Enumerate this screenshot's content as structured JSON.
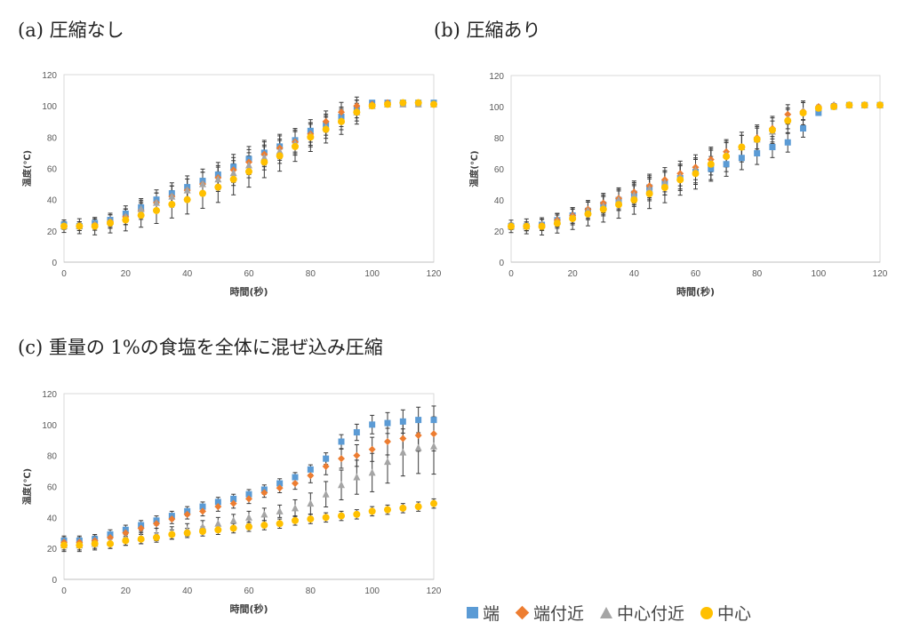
{
  "panels": [
    {
      "label": "(a) 圧縮なし"
    },
    {
      "label": "(b) 圧縮あり"
    },
    {
      "label": "(c) 重量の 1%の食塩を全体に混ぜ込み圧縮"
    }
  ],
  "legend": [
    {
      "name": "端",
      "color": "#5b9bd5",
      "icon": "square"
    },
    {
      "name": "端付近",
      "color": "#ed7d31",
      "icon": "diamond"
    },
    {
      "name": "中心付近",
      "color": "#a5a5a5",
      "icon": "triangle"
    },
    {
      "name": "中心",
      "color": "#ffc000",
      "icon": "circle"
    }
  ],
  "chart_data": [
    {
      "type": "scatter",
      "title": "(a) 圧縮なし",
      "xlabel": "時間(秒)",
      "ylabel": "温度(℃)",
      "xlim": [
        0,
        120
      ],
      "ylim": [
        0,
        120
      ],
      "xticks": [
        0,
        20,
        40,
        60,
        80,
        100,
        120
      ],
      "yticks": [
        0,
        20,
        40,
        60,
        80,
        100,
        120
      ],
      "error_bars": true,
      "x": [
        0,
        5,
        10,
        15,
        20,
        25,
        30,
        35,
        40,
        45,
        50,
        55,
        60,
        65,
        70,
        75,
        80,
        85,
        90,
        95,
        100,
        105,
        110,
        115,
        120
      ],
      "series": [
        {
          "name": "端",
          "values": [
            24,
            23,
            25,
            27,
            31,
            35,
            40,
            44,
            48,
            52,
            56,
            61,
            66,
            70,
            74,
            78,
            84,
            88,
            93,
            98,
            102,
            102,
            102,
            102,
            102
          ]
        },
        {
          "name": "端付近",
          "values": [
            23,
            23,
            24,
            26,
            29,
            33,
            38,
            42,
            46,
            50,
            54,
            59,
            64,
            69,
            73,
            77,
            82,
            90,
            96,
            100,
            101,
            102,
            102,
            102,
            101
          ]
        },
        {
          "name": "中心付近",
          "values": [
            23,
            23,
            24,
            26,
            29,
            34,
            38,
            42,
            46,
            50,
            53,
            57,
            62,
            67,
            71,
            76,
            81,
            86,
            91,
            96,
            100,
            101,
            101,
            101,
            101
          ]
        },
        {
          "name": "中心",
          "values": [
            23,
            23,
            23,
            25,
            27,
            30,
            33,
            37,
            40,
            44,
            48,
            53,
            58,
            64,
            68,
            74,
            80,
            85,
            90,
            96,
            100,
            101,
            102,
            102,
            101
          ]
        }
      ]
    },
    {
      "type": "scatter",
      "title": "(b) 圧縮あり",
      "xlabel": "時間(秒)",
      "ylabel": "温度(℃)",
      "xlim": [
        0,
        120
      ],
      "ylim": [
        0,
        120
      ],
      "xticks": [
        0,
        20,
        40,
        60,
        80,
        100,
        120
      ],
      "yticks": [
        0,
        20,
        40,
        60,
        80,
        100,
        120
      ],
      "error_bars": true,
      "x": [
        0,
        5,
        10,
        15,
        20,
        25,
        30,
        35,
        40,
        45,
        50,
        55,
        60,
        65,
        70,
        75,
        80,
        85,
        90,
        95,
        100,
        105,
        110,
        115,
        120
      ],
      "series": [
        {
          "name": "端",
          "values": [
            23,
            23,
            24,
            27,
            30,
            33,
            37,
            40,
            44,
            48,
            51,
            54,
            58,
            60,
            63,
            67,
            70,
            74,
            77,
            86,
            96,
            100,
            101,
            101,
            101
          ]
        },
        {
          "name": "端付近",
          "values": [
            23,
            23,
            24,
            27,
            30,
            34,
            38,
            41,
            45,
            49,
            53,
            57,
            61,
            66,
            71,
            74,
            80,
            86,
            95,
            97,
            100,
            101,
            101,
            101,
            101
          ]
        },
        {
          "name": "中心付近",
          "values": [
            23,
            23,
            24,
            26,
            29,
            33,
            36,
            40,
            43,
            47,
            51,
            55,
            59,
            64,
            69,
            74,
            79,
            84,
            92,
            97,
            99,
            101,
            101,
            101,
            101
          ]
        },
        {
          "name": "中心",
          "values": [
            23,
            23,
            23,
            25,
            28,
            31,
            34,
            37,
            40,
            44,
            48,
            53,
            57,
            63,
            68,
            74,
            79,
            85,
            91,
            96,
            99,
            100,
            101,
            101,
            101
          ]
        }
      ]
    },
    {
      "type": "scatter",
      "title": "(c) 重量の 1%の食塩を全体に混ぜ込み圧縮",
      "xlabel": "時間(秒)",
      "ylabel": "温度(℃)",
      "xlim": [
        0,
        120
      ],
      "ylim": [
        0,
        120
      ],
      "xticks": [
        0,
        20,
        40,
        60,
        80,
        100,
        120
      ],
      "yticks": [
        0,
        20,
        40,
        60,
        80,
        100,
        120
      ],
      "error_bars": true,
      "x": [
        0,
        5,
        10,
        15,
        20,
        25,
        30,
        35,
        40,
        45,
        50,
        55,
        60,
        65,
        70,
        75,
        80,
        85,
        90,
        95,
        100,
        105,
        110,
        115,
        120
      ],
      "series": [
        {
          "name": "端",
          "values": [
            25,
            25,
            26,
            29,
            32,
            35,
            38,
            41,
            44,
            47,
            50,
            52,
            55,
            58,
            62,
            66,
            71,
            78,
            89,
            95,
            100,
            101,
            102,
            103,
            103
          ]
        },
        {
          "name": "端付近",
          "values": [
            24,
            24,
            25,
            27,
            30,
            33,
            36,
            39,
            42,
            44,
            47,
            49,
            52,
            56,
            59,
            62,
            67,
            73,
            78,
            80,
            84,
            89,
            91,
            93,
            94
          ]
        },
        {
          "name": "中心付近",
          "values": [
            22,
            22,
            23,
            24,
            26,
            27,
            29,
            30,
            32,
            34,
            36,
            38,
            40,
            42,
            44,
            46,
            49,
            55,
            61,
            66,
            69,
            76,
            82,
            85,
            86
          ]
        },
        {
          "name": "中心",
          "values": [
            22,
            22,
            23,
            23,
            25,
            26,
            27,
            29,
            30,
            31,
            32,
            33,
            34,
            35,
            36,
            38,
            39,
            40,
            41,
            42,
            44,
            45,
            46,
            47,
            49
          ]
        }
      ]
    }
  ]
}
